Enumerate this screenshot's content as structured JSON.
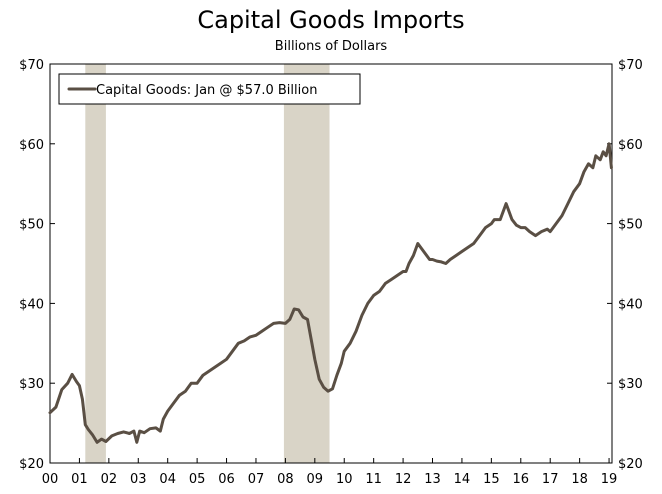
{
  "chart_data": {
    "type": "line",
    "title": "Capital Goods Imports",
    "subtitle": "Billions of Dollars",
    "xlabel": "",
    "ylabel": "",
    "x_tick_labels": [
      "00",
      "01",
      "02",
      "03",
      "04",
      "05",
      "06",
      "07",
      "08",
      "09",
      "10",
      "11",
      "12",
      "13",
      "14",
      "15",
      "16",
      "17",
      "18",
      "19"
    ],
    "x_range": [
      2000,
      2019.1
    ],
    "ylim": [
      20,
      70
    ],
    "y_ticks": [
      20,
      30,
      40,
      50,
      60,
      70
    ],
    "y_tick_labels": [
      "$20",
      "$30",
      "$40",
      "$50",
      "$60",
      "$70"
    ],
    "recession_bands": [
      [
        2001.2,
        2001.9
      ],
      [
        2007.95,
        2009.5
      ]
    ],
    "legend": {
      "position": "top-left",
      "label": "Capital Goods: Jan @ $57.0 Billion"
    },
    "series": [
      {
        "name": "Capital Goods",
        "color": "#5a4f44",
        "x": [
          2000.0,
          2000.2,
          2000.4,
          2000.6,
          2000.75,
          2000.9,
          2001.0,
          2001.1,
          2001.2,
          2001.3,
          2001.45,
          2001.6,
          2001.75,
          2001.9,
          2002.1,
          2002.3,
          2002.5,
          2002.7,
          2002.85,
          2002.95,
          2003.05,
          2003.2,
          2003.4,
          2003.6,
          2003.75,
          2003.85,
          2004.0,
          2004.2,
          2004.4,
          2004.6,
          2004.8,
          2005.0,
          2005.2,
          2005.4,
          2005.6,
          2005.8,
          2006.0,
          2006.2,
          2006.4,
          2006.6,
          2006.8,
          2007.0,
          2007.2,
          2007.4,
          2007.6,
          2007.8,
          2008.0,
          2008.15,
          2008.3,
          2008.45,
          2008.6,
          2008.75,
          2008.9,
          2009.0,
          2009.15,
          2009.3,
          2009.45,
          2009.6,
          2009.75,
          2009.9,
          2010.0,
          2010.2,
          2010.4,
          2010.6,
          2010.8,
          2011.0,
          2011.2,
          2011.4,
          2011.6,
          2011.8,
          2012.0,
          2012.1,
          2012.2,
          2012.35,
          2012.5,
          2012.7,
          2012.9,
          2013.0,
          2013.15,
          2013.3,
          2013.45,
          2013.6,
          2013.8,
          2014.0,
          2014.2,
          2014.4,
          2014.6,
          2014.8,
          2015.0,
          2015.1,
          2015.2,
          2015.3,
          2015.5,
          2015.7,
          2015.85,
          2016.0,
          2016.15,
          2016.3,
          2016.5,
          2016.7,
          2016.9,
          2017.0,
          2017.2,
          2017.4,
          2017.6,
          2017.8,
          2018.0,
          2018.15,
          2018.3,
          2018.45,
          2018.55,
          2018.7,
          2018.8,
          2018.9,
          2019.0,
          2019.08
        ],
        "values": [
          26.3,
          27.0,
          29.2,
          30.0,
          31.1,
          30.2,
          29.7,
          28.0,
          24.8,
          24.2,
          23.5,
          22.6,
          23.0,
          22.7,
          23.4,
          23.7,
          23.9,
          23.7,
          24.0,
          22.6,
          24.0,
          23.8,
          24.3,
          24.4,
          24.0,
          25.5,
          26.5,
          27.5,
          28.5,
          29.0,
          30.0,
          30.0,
          31.0,
          31.5,
          32.0,
          32.5,
          33.0,
          34.0,
          35.0,
          35.3,
          35.8,
          36.0,
          36.5,
          37.0,
          37.5,
          37.6,
          37.5,
          38.0,
          39.3,
          39.2,
          38.3,
          38.0,
          35.0,
          33.0,
          30.5,
          29.5,
          29.0,
          29.3,
          31.0,
          32.5,
          34.0,
          35.0,
          36.5,
          38.5,
          40.0,
          41.0,
          41.5,
          42.5,
          43.0,
          43.5,
          44.0,
          44.0,
          45.0,
          46.0,
          47.5,
          46.5,
          45.5,
          45.5,
          45.3,
          45.2,
          45.0,
          45.5,
          46.0,
          46.5,
          47.0,
          47.5,
          48.5,
          49.5,
          50.0,
          50.5,
          50.5,
          50.5,
          52.5,
          50.5,
          49.8,
          49.5,
          49.5,
          49.0,
          48.5,
          49.0,
          49.3,
          49.0,
          50.0,
          51.0,
          52.5,
          54.0,
          55.0,
          56.5,
          57.5,
          57.0,
          58.5,
          58.0,
          59.0,
          58.5,
          60.0,
          57.0
        ]
      }
    ]
  }
}
